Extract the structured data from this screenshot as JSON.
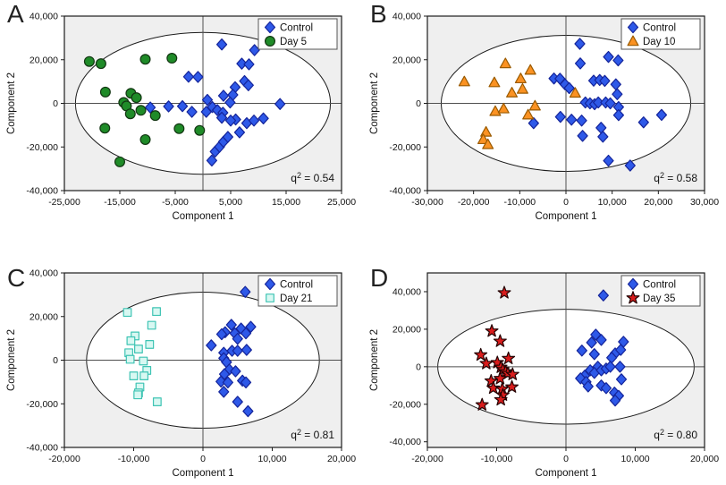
{
  "style": {
    "background": "#ffffff",
    "plot_bg": "#efefef",
    "ellipse_fill": "#ffffff",
    "frame": "#1c1c1c",
    "crosshair": "#4f4f4f",
    "text": "#111111",
    "legend_bg": "#ffffff",
    "legend_border": "#555555"
  },
  "chart_data": [
    {
      "type": "scatter",
      "letter": "A",
      "xlabel": "Component 1",
      "ylabel": "Component 2",
      "xlim": [
        -25000,
        25000
      ],
      "ylim": [
        -40000,
        40000
      ],
      "xticks": [
        -25000,
        -15000,
        -5000,
        5000,
        15000,
        25000
      ],
      "yticks": [
        -40000,
        -20000,
        0,
        20000,
        40000
      ],
      "ellipse": {
        "cx": 0,
        "cy": 0,
        "rx": 23000,
        "ry": 32500
      },
      "stat": {
        "base": "q",
        "sup": "2",
        "value": "0.54"
      },
      "legend_position": "top-right",
      "series": [
        {
          "name": "Control",
          "marker": "diamond",
          "fill": "#2e59e8",
          "stroke": "#14249a",
          "points": [
            [
              3400,
              27000
            ],
            [
              9300,
              24400
            ],
            [
              7000,
              18200
            ],
            [
              8300,
              17900
            ],
            [
              7500,
              10200
            ],
            [
              8200,
              8300
            ],
            [
              -2600,
              12200
            ],
            [
              -900,
              12100
            ],
            [
              5800,
              7400
            ],
            [
              3700,
              3500
            ],
            [
              5400,
              3900
            ],
            [
              4900,
              400
            ],
            [
              800,
              1600
            ],
            [
              1700,
              -1700
            ],
            [
              2600,
              -3100
            ],
            [
              3600,
              -4300
            ],
            [
              -3700,
              -1300
            ],
            [
              -2000,
              -3900
            ],
            [
              600,
              -3900
            ],
            [
              -6200,
              -1400
            ],
            [
              -9500,
              -1900
            ],
            [
              5900,
              -7400
            ],
            [
              5000,
              -7900
            ],
            [
              3400,
              -6600
            ],
            [
              7900,
              -9100
            ],
            [
              9200,
              -7900
            ],
            [
              10900,
              -6900
            ],
            [
              13900,
              -300
            ],
            [
              1600,
              -26200
            ],
            [
              2200,
              -22100
            ],
            [
              3000,
              -19900
            ],
            [
              3700,
              -17600
            ],
            [
              4500,
              -15400
            ],
            [
              6600,
              -13300
            ]
          ]
        },
        {
          "name": "Day 5",
          "marker": "circle",
          "fill": "#1f8b28",
          "stroke": "#123612",
          "points": [
            [
              -20500,
              19200
            ],
            [
              -18400,
              18200
            ],
            [
              -10400,
              20200
            ],
            [
              -5600,
              20700
            ],
            [
              -17600,
              5200
            ],
            [
              -14300,
              400
            ],
            [
              -13000,
              4600
            ],
            [
              -12000,
              2600
            ],
            [
              -13800,
              -1200
            ],
            [
              -13100,
              -4800
            ],
            [
              -11200,
              -3200
            ],
            [
              -8600,
              -5600
            ],
            [
              -17700,
              -11400
            ],
            [
              -10400,
              -16600
            ],
            [
              -4300,
              -11600
            ],
            [
              -600,
              -12400
            ],
            [
              -15000,
              -26800
            ]
          ]
        }
      ]
    },
    {
      "type": "scatter",
      "letter": "B",
      "xlabel": "Component 1",
      "ylabel": "Component 2",
      "xlim": [
        -30000,
        30000
      ],
      "ylim": [
        -40000,
        40000
      ],
      "xticks": [
        -30000,
        -20000,
        -10000,
        0,
        10000,
        20000,
        30000
      ],
      "yticks": [
        -40000,
        -20000,
        0,
        20000,
        40000
      ],
      "ellipse": {
        "cx": 0,
        "cy": 0,
        "rx": 27000,
        "ry": 31200
      },
      "stat": {
        "base": "q",
        "sup": "2",
        "value": "0.58"
      },
      "legend_position": "top-right",
      "series": [
        {
          "name": "Control",
          "marker": "diamond",
          "fill": "#2e59e8",
          "stroke": "#14249a",
          "points": [
            [
              3000,
              27300
            ],
            [
              3100,
              18300
            ],
            [
              9200,
              21300
            ],
            [
              11300,
              19700
            ],
            [
              -2600,
              11400
            ],
            [
              -1300,
              11300
            ],
            [
              -200,
              8700
            ],
            [
              700,
              7000
            ],
            [
              6000,
              10400
            ],
            [
              7300,
              10700
            ],
            [
              8400,
              10300
            ],
            [
              10800,
              8700
            ],
            [
              11100,
              4200
            ],
            [
              4200,
              400
            ],
            [
              5200,
              0
            ],
            [
              6200,
              -400
            ],
            [
              7000,
              400
            ],
            [
              8600,
              400
            ],
            [
              9600,
              0
            ],
            [
              11400,
              -1700
            ],
            [
              11400,
              -5400
            ],
            [
              -1200,
              -6200
            ],
            [
              1200,
              -7500
            ],
            [
              3400,
              -7900
            ],
            [
              3600,
              -14900
            ],
            [
              7600,
              -11200
            ],
            [
              8000,
              -15300
            ],
            [
              16800,
              -8700
            ],
            [
              20700,
              -5300
            ],
            [
              -7000,
              -9100
            ],
            [
              9200,
              -26300
            ],
            [
              13900,
              -28500
            ]
          ]
        },
        {
          "name": "Day 10",
          "marker": "triangle",
          "fill": "#fb9222",
          "stroke": "#9a5a00",
          "points": [
            [
              -22000,
              10000
            ],
            [
              -15500,
              9600
            ],
            [
              -13100,
              18300
            ],
            [
              -9800,
              11400
            ],
            [
              -9400,
              6600
            ],
            [
              -7700,
              15300
            ],
            [
              -11700,
              4900
            ],
            [
              -6700,
              -1100
            ],
            [
              -8200,
              -5200
            ],
            [
              -15300,
              -3600
            ],
            [
              -13500,
              -2400
            ],
            [
              -17300,
              -13100
            ],
            [
              -17900,
              -16500
            ],
            [
              -16900,
              -18800
            ],
            [
              2000,
              4800
            ]
          ]
        }
      ]
    },
    {
      "type": "scatter",
      "letter": "C",
      "xlabel": "Component 1",
      "ylabel": "Component 2",
      "xlim": [
        -20000,
        20000
      ],
      "ylim": [
        -40000,
        40000
      ],
      "xticks": [
        -20000,
        -10000,
        0,
        10000,
        20000
      ],
      "yticks": [
        -40000,
        -20000,
        0,
        20000,
        40000
      ],
      "ellipse": {
        "cx": 0,
        "cy": 0,
        "rx": 16800,
        "ry": 31200
      },
      "stat": {
        "base": "q",
        "sup": "2",
        "value": "0.81"
      },
      "legend_position": "top-right",
      "series": [
        {
          "name": "Control",
          "marker": "diamond",
          "fill": "#2e59e8",
          "stroke": "#14249a",
          "points": [
            [
              6100,
              31300
            ],
            [
              4100,
              16200
            ],
            [
              3200,
              12800
            ],
            [
              4600,
              12300
            ],
            [
              5500,
              14500
            ],
            [
              6900,
              15300
            ],
            [
              6200,
              12300
            ],
            [
              2700,
              11900
            ],
            [
              5000,
              9800
            ],
            [
              1200,
              6800
            ],
            [
              3000,
              3400
            ],
            [
              4200,
              4300
            ],
            [
              5000,
              4300
            ],
            [
              6300,
              4700
            ],
            [
              3000,
              900
            ],
            [
              3400,
              -900
            ],
            [
              3800,
              -4300
            ],
            [
              4700,
              -5100
            ],
            [
              3100,
              -6400
            ],
            [
              2600,
              -9800
            ],
            [
              3600,
              -10200
            ],
            [
              5700,
              -9400
            ],
            [
              6200,
              -10200
            ],
            [
              3000,
              -14500
            ],
            [
              5000,
              -19100
            ],
            [
              6500,
              -23400
            ]
          ]
        },
        {
          "name": "Day 21",
          "marker": "square",
          "fill": "#d8f8f2",
          "stroke": "#3fc4b4",
          "points": [
            [
              -10900,
              21900
            ],
            [
              -6700,
              22300
            ],
            [
              -7400,
              16000
            ],
            [
              -9800,
              11100
            ],
            [
              -10400,
              8900
            ],
            [
              -7700,
              7200
            ],
            [
              -9300,
              5100
            ],
            [
              -10700,
              3400
            ],
            [
              -10500,
              400
            ],
            [
              -8600,
              -400
            ],
            [
              -8100,
              -4700
            ],
            [
              -10000,
              -7200
            ],
            [
              -8500,
              -7200
            ],
            [
              -9100,
              -12300
            ],
            [
              -9300,
              -15000
            ],
            [
              -9400,
              -15900
            ],
            [
              -6600,
              -19100
            ]
          ]
        }
      ]
    },
    {
      "type": "scatter",
      "letter": "D",
      "xlabel": "Component 1",
      "ylabel": "Component 2",
      "xlim": [
        -20000,
        20000
      ],
      "ylim": [
        -43000,
        50000
      ],
      "xticks": [
        -20000,
        -10000,
        0,
        10000,
        20000
      ],
      "yticks": [
        -40000,
        -20000,
        0,
        20000,
        40000
      ],
      "ellipse": {
        "cx": 0,
        "cy": 0,
        "rx": 18500,
        "ry": 30600
      },
      "stat": {
        "base": "q",
        "sup": "2",
        "value": "0.80"
      },
      "legend_position": "top-right",
      "series": [
        {
          "name": "Control",
          "marker": "diamond",
          "fill": "#2e59e8",
          "stroke": "#14249a",
          "points": [
            [
              5400,
              38000
            ],
            [
              4300,
              17100
            ],
            [
              5100,
              14300
            ],
            [
              3700,
              12900
            ],
            [
              8300,
              13300
            ],
            [
              2300,
              8600
            ],
            [
              4100,
              6700
            ],
            [
              7100,
              7100
            ],
            [
              7900,
              9000
            ],
            [
              6600,
              4800
            ],
            [
              4600,
              0
            ],
            [
              3500,
              -1900
            ],
            [
              4100,
              -3300
            ],
            [
              5100,
              -1900
            ],
            [
              5800,
              -1000
            ],
            [
              6400,
              0
            ],
            [
              2700,
              -4800
            ],
            [
              2100,
              -6200
            ],
            [
              2900,
              -8100
            ],
            [
              3200,
              -10500
            ],
            [
              7800,
              0
            ],
            [
              8000,
              -6700
            ],
            [
              5100,
              -10000
            ],
            [
              5800,
              -11400
            ],
            [
              7000,
              -13800
            ],
            [
              7600,
              -15500
            ],
            [
              7100,
              -18000
            ]
          ]
        },
        {
          "name": "Day 35",
          "marker": "star",
          "fill": "#d91c1c",
          "stroke": "#230303",
          "points": [
            [
              -8900,
              39400
            ],
            [
              -10700,
              19000
            ],
            [
              -9500,
              13600
            ],
            [
              -12300,
              6300
            ],
            [
              -8300,
              4400
            ],
            [
              -11500,
              1700
            ],
            [
              -9900,
              2200
            ],
            [
              -9400,
              -300
            ],
            [
              -9100,
              -1600
            ],
            [
              -8700,
              -2700
            ],
            [
              -8400,
              -3600
            ],
            [
              -7700,
              -4100
            ],
            [
              -10800,
              -7600
            ],
            [
              -9500,
              -6300
            ],
            [
              -10500,
              -11400
            ],
            [
              -9200,
              -11900
            ],
            [
              -7800,
              -10800
            ],
            [
              -9100,
              -15100
            ],
            [
              -9400,
              -17600
            ],
            [
              -12100,
              -20300
            ]
          ]
        }
      ]
    }
  ]
}
